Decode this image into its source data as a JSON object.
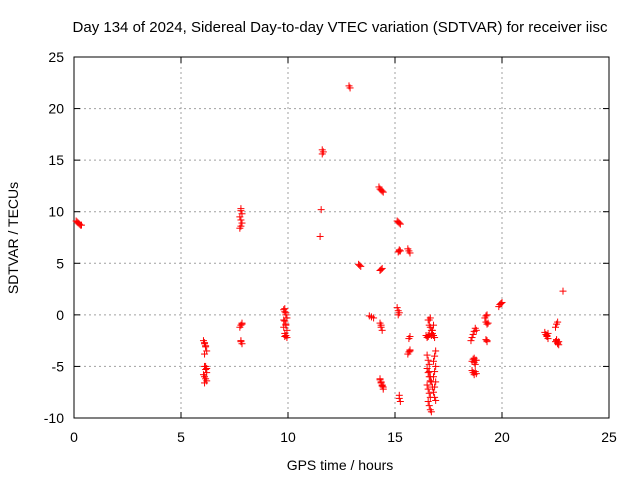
{
  "chart_data": {
    "type": "scatter",
    "title": "Day 134 of 2024, Sidereal Day-to-day VTEC variation (SDTVAR) for receiver iisc",
    "xlabel": "GPS time / hours",
    "ylabel": "SDTVAR / TECUs",
    "xlim": [
      0,
      25
    ],
    "ylim": [
      -10,
      25
    ],
    "xticks": [
      0,
      5,
      10,
      15,
      20,
      25
    ],
    "yticks": [
      -10,
      -5,
      0,
      5,
      10,
      15,
      20,
      25
    ],
    "grid": true,
    "marker": "plus",
    "color": "#ff0000",
    "series": [
      {
        "name": "SDTVAR",
        "x": [
          0.1,
          0.15,
          0.2,
          0.25,
          0.3,
          0.35,
          6.05,
          6.1,
          6.15,
          6.2,
          6.1,
          6.15,
          6.2,
          6.05,
          6.1,
          6.15,
          6.2,
          6.1,
          6.15,
          6.2,
          6.1,
          6.15,
          6.1,
          7.75,
          7.8,
          7.85,
          7.8,
          7.75,
          7.85,
          7.8,
          7.8,
          7.85,
          7.75,
          7.8,
          7.85,
          7.8,
          7.85,
          7.8,
          9.8,
          9.85,
          9.9,
          9.95,
          9.85,
          9.9,
          9.8,
          9.95,
          9.85,
          9.9,
          9.95,
          9.85,
          9.9,
          9.8,
          9.85,
          9.9,
          11.5,
          11.55,
          11.6,
          11.6,
          11.65,
          12.85,
          12.9,
          13.3,
          13.35,
          13.4,
          13.8,
          13.9,
          14.0,
          14.25,
          14.3,
          14.35,
          14.4,
          14.45,
          14.3,
          14.35,
          14.4,
          14.3,
          14.35,
          14.4,
          14.3,
          14.35,
          14.4,
          14.45,
          14.3,
          14.35,
          14.4,
          14.45,
          14.35,
          15.1,
          15.15,
          15.2,
          15.25,
          15.2,
          15.15,
          15.2,
          15.25,
          15.1,
          15.15,
          15.2,
          15.15,
          15.2,
          15.2,
          15.25,
          15.6,
          15.65,
          15.7,
          15.65,
          15.7,
          15.65,
          15.7,
          15.6,
          15.7,
          16.45,
          16.5,
          16.55,
          16.6,
          16.5,
          16.55,
          16.6,
          16.5,
          16.55,
          16.6,
          16.65,
          16.5,
          16.55,
          16.6,
          16.65,
          16.55,
          16.6,
          16.65,
          16.7,
          16.6,
          16.65,
          16.7,
          16.75,
          16.8,
          16.85,
          16.9,
          16.85,
          16.9,
          16.8,
          16.85,
          16.9,
          16.8,
          16.85,
          16.9,
          16.7,
          16.75,
          16.8,
          16.6,
          16.65,
          16.55,
          16.6,
          16.65,
          16.7,
          16.75,
          16.8,
          16.85,
          16.55,
          18.55,
          18.6,
          18.65,
          18.7,
          18.75,
          18.8,
          18.6,
          18.65,
          18.7,
          18.75,
          18.8,
          18.6,
          18.65,
          18.7,
          18.75,
          18.8,
          18.7,
          18.75,
          19.2,
          19.25,
          19.3,
          19.25,
          19.3,
          19.35,
          19.25,
          19.3,
          19.3,
          19.85,
          19.9,
          19.95,
          20.0,
          22.0,
          22.05,
          22.1,
          22.15,
          22.1,
          22.15,
          22.5,
          22.55,
          22.6,
          22.55,
          22.6,
          22.65,
          22.5,
          22.55,
          22.6,
          22.65,
          22.85
        ],
        "y": [
          9.1,
          9.0,
          8.9,
          8.8,
          8.7,
          8.7,
          -2.5,
          -2.8,
          -3.1,
          -3.5,
          -5.0,
          -5.3,
          -5.6,
          -5.8,
          -6.0,
          -6.2,
          -6.4,
          -6.6,
          -5.0,
          -5.2,
          -3.8,
          -3.0,
          -2.7,
          8.4,
          8.6,
          8.9,
          9.2,
          9.5,
          9.8,
          10.1,
          10.3,
          -0.9,
          -1.2,
          -1.0,
          -0.8,
          -2.6,
          -2.8,
          -2.5,
          0.5,
          0.3,
          0.0,
          -0.3,
          -0.6,
          -0.9,
          -1.2,
          -1.5,
          -1.8,
          -2.0,
          -2.2,
          -2.1,
          -1.0,
          -0.5,
          0.6,
          0.2,
          7.6,
          10.2,
          15.6,
          16.0,
          15.8,
          22.2,
          22.0,
          4.9,
          4.8,
          4.7,
          -0.1,
          -0.2,
          -0.3,
          12.4,
          12.2,
          12.1,
          12.0,
          11.9,
          4.3,
          4.4,
          4.5,
          -0.8,
          -1.2,
          -1.5,
          -6.2,
          -6.5,
          -6.8,
          -7.0,
          -6.3,
          -6.6,
          -6.9,
          -7.2,
          -1.0,
          9.1,
          9.0,
          8.9,
          8.8,
          6.2,
          6.1,
          6.3,
          6.2,
          0.7,
          0.4,
          0.2,
          0.0,
          -7.8,
          -8.1,
          -8.4,
          6.4,
          6.2,
          6.0,
          -2.3,
          -2.1,
          -3.6,
          -3.4,
          -3.8,
          -3.5,
          -2.0,
          -2.2,
          -2.1,
          -1.9,
          -3.9,
          -4.4,
          -4.8,
          -5.2,
          -5.6,
          -6.0,
          -6.4,
          -6.8,
          -7.2,
          -7.6,
          -8.0,
          -8.4,
          -8.8,
          -9.2,
          -9.4,
          -5.5,
          -6.0,
          -6.5,
          -7.0,
          -7.5,
          -8.0,
          -8.3,
          -7.0,
          -6.5,
          -6.0,
          -5.5,
          -5.0,
          -4.5,
          -4.0,
          -3.5,
          -2.0,
          -1.5,
          -1.0,
          -0.5,
          -0.3,
          -0.5,
          -1.0,
          -1.2,
          -1.5,
          -1.8,
          -2.0,
          -2.2,
          -2.0,
          -2.5,
          -2.2,
          -1.9,
          -1.6,
          -1.3,
          -1.5,
          -4.5,
          -4.3,
          -4.6,
          -4.8,
          -4.4,
          -5.4,
          -5.6,
          -5.8,
          -5.5,
          -5.7,
          -4.2,
          -4.4,
          -0.3,
          -0.1,
          0.0,
          -0.7,
          -0.9,
          -0.8,
          -2.4,
          -2.6,
          -2.5,
          0.8,
          1.0,
          1.1,
          1.2,
          -1.7,
          -1.9,
          -2.1,
          -2.3,
          -2.0,
          -1.8,
          -1.2,
          -0.9,
          -0.7,
          -2.5,
          -2.7,
          -2.9,
          -2.6,
          -2.4,
          -2.8,
          -2.6,
          2.3
        ]
      }
    ]
  }
}
